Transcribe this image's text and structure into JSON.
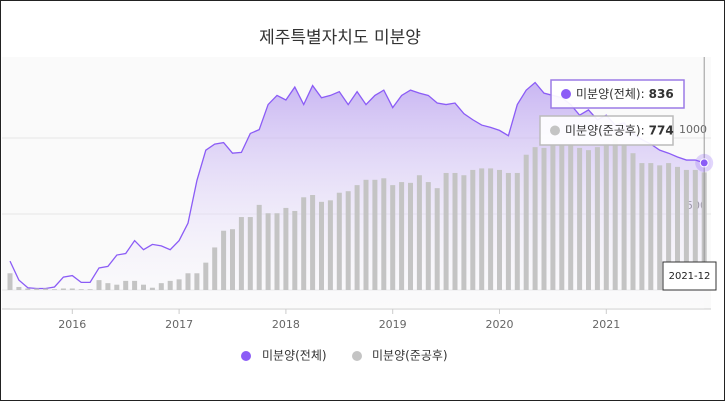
{
  "chart_data": {
    "type": "combo",
    "title": "제주특별자치도 미분양",
    "categories": [
      "2015-06",
      "2015-07",
      "2015-08",
      "2015-09",
      "2015-10",
      "2015-11",
      "2015-12",
      "2016-01",
      "2016-02",
      "2016-03",
      "2016-04",
      "2016-05",
      "2016-06",
      "2016-07",
      "2016-08",
      "2016-09",
      "2016-10",
      "2016-11",
      "2016-12",
      "2017-01",
      "2017-02",
      "2017-03",
      "2017-04",
      "2017-05",
      "2017-06",
      "2017-07",
      "2017-08",
      "2017-09",
      "2017-10",
      "2017-11",
      "2017-12",
      "2018-01",
      "2018-02",
      "2018-03",
      "2018-04",
      "2018-05",
      "2018-06",
      "2018-07",
      "2018-08",
      "2018-09",
      "2018-10",
      "2018-11",
      "2018-12",
      "2019-01",
      "2019-02",
      "2019-03",
      "2019-04",
      "2019-05",
      "2019-06",
      "2019-07",
      "2019-08",
      "2019-09",
      "2019-10",
      "2019-11",
      "2019-12",
      "2020-01",
      "2020-02",
      "2020-03",
      "2020-04",
      "2020-05",
      "2020-06",
      "2020-07",
      "2020-08",
      "2020-09",
      "2020-10",
      "2020-11",
      "2020-12",
      "2021-01",
      "2021-02",
      "2021-03",
      "2021-04",
      "2021-05",
      "2021-06",
      "2021-07",
      "2021-08",
      "2021-09",
      "2021-10",
      "2021-11",
      "2021-12"
    ],
    "series": [
      {
        "name": "미분양(전체)",
        "type": "area",
        "color": "#8b5cf6",
        "values": [
          190,
          65,
          15,
          10,
          10,
          20,
          85,
          95,
          50,
          50,
          145,
          155,
          230,
          240,
          325,
          265,
          300,
          290,
          265,
          325,
          440,
          720,
          920,
          960,
          970,
          900,
          905,
          1030,
          1055,
          1220,
          1280,
          1250,
          1335,
          1220,
          1345,
          1265,
          1280,
          1305,
          1220,
          1305,
          1220,
          1280,
          1315,
          1200,
          1280,
          1315,
          1295,
          1280,
          1230,
          1220,
          1230,
          1160,
          1120,
          1085,
          1070,
          1050,
          1015,
          1220,
          1315,
          1365,
          1295,
          1280,
          1265,
          1220,
          1150,
          1185,
          1120,
          1150,
          1085,
          1100,
          1030,
          990,
          960,
          920,
          900,
          875,
          855,
          855,
          836
        ]
      },
      {
        "name": "미분양(준공후)",
        "type": "bar",
        "color": "#c4c4c4",
        "values": [
          110,
          20,
          10,
          10,
          10,
          5,
          10,
          10,
          5,
          5,
          65,
          45,
          35,
          60,
          60,
          35,
          15,
          45,
          60,
          70,
          110,
          110,
          180,
          280,
          390,
          400,
          480,
          480,
          560,
          505,
          505,
          540,
          520,
          610,
          625,
          580,
          590,
          640,
          650,
          690,
          725,
          725,
          735,
          690,
          710,
          705,
          755,
          710,
          670,
          770,
          770,
          755,
          790,
          800,
          800,
          790,
          770,
          770,
          890,
          940,
          935,
          955,
          955,
          955,
          935,
          920,
          940,
          965,
          1020,
          955,
          900,
          835,
          835,
          820,
          835,
          810,
          790,
          790,
          774
        ]
      }
    ],
    "ylim": [
      0,
      1500
    ],
    "yticks": [
      0,
      500,
      1000
    ],
    "xticks": [
      {
        "value": "2016-01",
        "label": "2016"
      },
      {
        "value": "2017-01",
        "label": "2017"
      },
      {
        "value": "2018-01",
        "label": "2018"
      },
      {
        "value": "2019-01",
        "label": "2019"
      },
      {
        "value": "2020-01",
        "label": "2020"
      },
      {
        "value": "2021-01",
        "label": "2021"
      }
    ],
    "grid": true,
    "legend": "bottom",
    "tooltip": {
      "separator": ":"
    }
  }
}
